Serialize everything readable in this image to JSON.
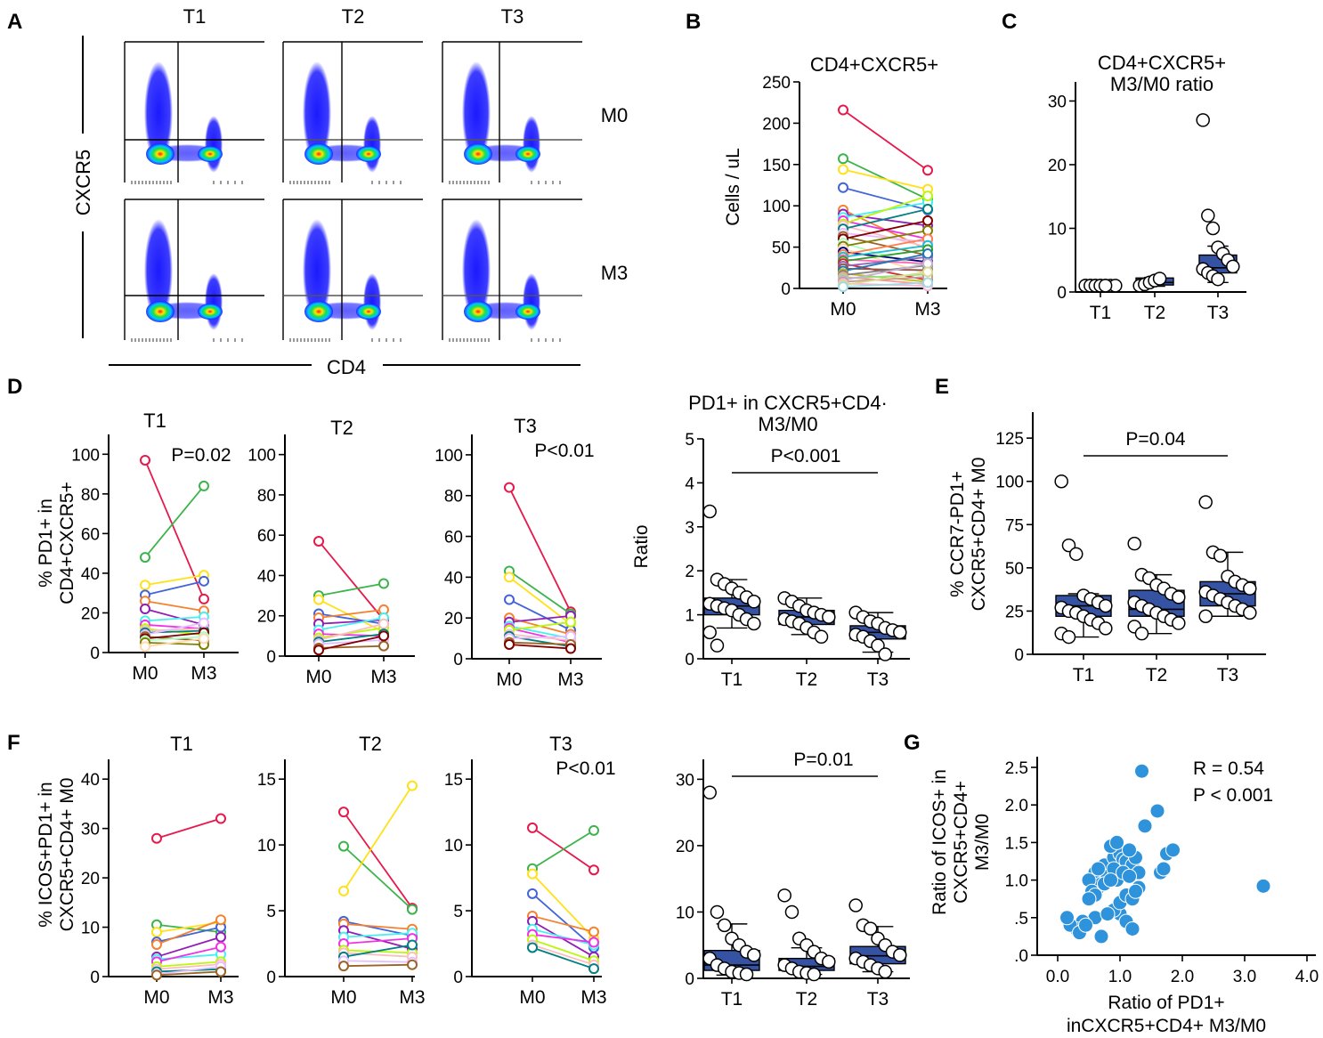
{
  "panel_labels": [
    "A",
    "B",
    "C",
    "D",
    "E",
    "F",
    "G"
  ],
  "chart_data": [
    {
      "id": "A",
      "type": "flow-cytometry",
      "columns": [
        "T1",
        "T2",
        "T3"
      ],
      "rows": [
        "M0",
        "M3"
      ],
      "xlabel": "CD4",
      "ylabel": "CXCR5",
      "colors": [
        "#1a1aff",
        "#00c8ff",
        "#00e040",
        "#ffe000",
        "#ff2000"
      ]
    },
    {
      "id": "B",
      "type": "paired-line",
      "title": "CD4+CXCR5+",
      "categories": [
        "M0",
        "M3"
      ],
      "ylabel": "Cells / uL",
      "ylim": [
        0,
        250
      ],
      "yticks": [
        0,
        50,
        100,
        150,
        200,
        250
      ],
      "pairs": [
        [
          216,
          143
        ],
        [
          157,
          108
        ],
        [
          144,
          120
        ],
        [
          122,
          95
        ],
        [
          95,
          47
        ],
        [
          90,
          76
        ],
        [
          86,
          104
        ],
        [
          82,
          60
        ],
        [
          78,
          112
        ],
        [
          76,
          50
        ],
        [
          72,
          96
        ],
        [
          67,
          56
        ],
        [
          63,
          40
        ],
        [
          60,
          82
        ],
        [
          55,
          25
        ],
        [
          51,
          70
        ],
        [
          48,
          18
        ],
        [
          44,
          32
        ],
        [
          41,
          60
        ],
        [
          38,
          52
        ],
        [
          35,
          30
        ],
        [
          33,
          47
        ],
        [
          30,
          10
        ],
        [
          27,
          38
        ],
        [
          24,
          22
        ],
        [
          21,
          42
        ],
        [
          18,
          8
        ],
        [
          16,
          28
        ],
        [
          14,
          5
        ],
        [
          12,
          17
        ],
        [
          10,
          30
        ],
        [
          8,
          14
        ],
        [
          6,
          3
        ],
        [
          4,
          20
        ],
        [
          2,
          7
        ]
      ]
    },
    {
      "id": "C",
      "type": "box-dot",
      "title": [
        "CD4+CXCR5+",
        "M3/M0 ratio"
      ],
      "categories": [
        "T1",
        "T2",
        "T3"
      ],
      "ylim": [
        0,
        33
      ],
      "yticks": [
        0,
        10,
        20,
        30
      ],
      "boxes": [
        {
          "q1": 1,
          "median": 1,
          "q3": 1,
          "wlo": 1,
          "whi": 1
        },
        {
          "q1": 1.1,
          "median": 1.5,
          "q3": 2.2,
          "wlo": 0.9,
          "whi": 2.3
        },
        {
          "q1": 3,
          "median": 3.8,
          "q3": 5.8,
          "wlo": 1.5,
          "whi": 7.2
        }
      ],
      "points": [
        [
          1,
          1,
          1,
          1,
          1,
          1,
          1,
          1,
          1,
          1,
          1,
          1
        ],
        [
          1,
          1.2,
          1.5,
          1.8,
          2.1
        ],
        [
          27,
          12,
          10,
          7,
          6,
          5,
          4,
          3.6,
          3,
          2.5,
          2
        ]
      ]
    },
    {
      "id": "D1",
      "type": "paired-line",
      "title": "T1",
      "pvalue": "P=0.02",
      "categories": [
        "M0",
        "M3"
      ],
      "ylabel": [
        "% PD1+ in",
        "CD4+CXCR5+"
      ],
      "ylim": [
        0,
        110
      ],
      "yticks": [
        0,
        20,
        40,
        60,
        80,
        100
      ],
      "pairs": [
        [
          97,
          27
        ],
        [
          48,
          84
        ],
        [
          34,
          39
        ],
        [
          29,
          36
        ],
        [
          26,
          21
        ],
        [
          22,
          14
        ],
        [
          16,
          18
        ],
        [
          14,
          12
        ],
        [
          12,
          9
        ],
        [
          11,
          12
        ],
        [
          10,
          11
        ],
        [
          9,
          15
        ],
        [
          8,
          6
        ],
        [
          7,
          10
        ],
        [
          6,
          8
        ],
        [
          5,
          4
        ],
        [
          3,
          7
        ]
      ]
    },
    {
      "id": "D2",
      "type": "paired-line",
      "title": "T2",
      "categories": [
        "M0",
        "M3"
      ],
      "ylim": [
        0,
        110
      ],
      "yticks": [
        0,
        20,
        40,
        60,
        80,
        100
      ],
      "pairs": [
        [
          57,
          18
        ],
        [
          30,
          36
        ],
        [
          28,
          12
        ],
        [
          21,
          16
        ],
        [
          19,
          23
        ],
        [
          16,
          18
        ],
        [
          13,
          19
        ],
        [
          11,
          10
        ],
        [
          9,
          14
        ],
        [
          8,
          16
        ],
        [
          7,
          11
        ],
        [
          6,
          8
        ],
        [
          4,
          5
        ],
        [
          3,
          10
        ]
      ]
    },
    {
      "id": "D3",
      "type": "paired-line",
      "title": "T3",
      "pvalue": "P<0.01",
      "categories": [
        "M0",
        "M3"
      ],
      "ylim": [
        0,
        110
      ],
      "yticks": [
        0,
        20,
        40,
        60,
        80,
        100
      ],
      "pairs": [
        [
          84,
          23
        ],
        [
          43,
          22
        ],
        [
          40,
          17
        ],
        [
          29,
          14
        ],
        [
          20,
          12
        ],
        [
          18,
          21
        ],
        [
          16,
          10
        ],
        [
          15,
          8
        ],
        [
          14,
          18
        ],
        [
          12,
          9
        ],
        [
          11,
          6
        ],
        [
          10,
          11
        ],
        [
          8,
          7
        ],
        [
          7,
          5
        ]
      ]
    },
    {
      "id": "D4",
      "type": "box-dot",
      "title": [
        "PD1+ in CXCR5+CD4·",
        "M3/M0"
      ],
      "pvalue": "P<0.001",
      "categories": [
        "T1",
        "T2",
        "T3"
      ],
      "ylabel": "Ratio",
      "ylim": [
        0,
        5
      ],
      "yticks": [
        0,
        1,
        2,
        3,
        4,
        5
      ],
      "boxes": [
        {
          "q1": 1.0,
          "median": 1.2,
          "q3": 1.38,
          "wlo": 0.7,
          "whi": 1.8
        },
        {
          "q1": 0.78,
          "median": 0.95,
          "q3": 1.1,
          "wlo": 0.55,
          "whi": 1.38
        },
        {
          "q1": 0.45,
          "median": 0.6,
          "q3": 0.75,
          "wlo": 0.15,
          "whi": 1.05
        }
      ],
      "points": [
        [
          3.35,
          1.8,
          1.7,
          1.6,
          1.5,
          1.4,
          1.3,
          1.25,
          1.2,
          1.15,
          1.1,
          1.0,
          0.9,
          0.8,
          0.6,
          0.3
        ],
        [
          1.38,
          1.3,
          1.2,
          1.1,
          1.05,
          1.0,
          0.95,
          0.9,
          0.85,
          0.8,
          0.7,
          0.6,
          0.5
        ],
        [
          1.05,
          0.95,
          0.85,
          0.8,
          0.7,
          0.65,
          0.6,
          0.55,
          0.5,
          0.4,
          0.3,
          0.1
        ]
      ]
    },
    {
      "id": "E",
      "type": "box-dot",
      "pvalue": "P=0.04",
      "categories": [
        "T1",
        "T2",
        "T3"
      ],
      "ylabel": [
        "% CCR7-PD1+",
        "CXCR5+CD4+ M0"
      ],
      "ylim": [
        0,
        140
      ],
      "yticks": [
        0,
        25,
        50,
        75,
        100,
        125
      ],
      "boxes": [
        {
          "q1": 22,
          "median": 28,
          "q3": 34,
          "wlo": 10,
          "whi": 35
        },
        {
          "q1": 22,
          "median": 26,
          "q3": 37,
          "wlo": 12,
          "whi": 46
        },
        {
          "q1": 28,
          "median": 35,
          "q3": 42,
          "wlo": 22,
          "whi": 59
        }
      ],
      "points": [
        [
          100,
          63,
          58,
          34,
          32,
          30,
          28,
          27,
          25,
          24,
          22,
          20,
          18,
          15,
          12,
          10
        ],
        [
          64,
          46,
          44,
          40,
          38,
          35,
          33,
          30,
          28,
          26,
          24,
          22,
          20,
          18,
          16,
          12
        ],
        [
          88,
          59,
          57,
          45,
          42,
          40,
          38,
          36,
          34,
          32,
          30,
          28,
          26,
          24,
          22
        ]
      ]
    },
    {
      "id": "F1",
      "type": "paired-line",
      "title": "T1",
      "categories": [
        "M0",
        "M3"
      ],
      "ylabel": [
        "% ICOS+PD1+ in",
        "CXCR5+CD4+ M0"
      ],
      "ylim": [
        0,
        44
      ],
      "yticks": [
        0,
        10,
        20,
        30,
        40
      ],
      "pairs": [
        [
          28,
          32
        ],
        [
          10.5,
          9
        ],
        [
          9,
          11
        ],
        [
          7,
          10
        ],
        [
          6.5,
          11.5
        ],
        [
          4,
          8
        ],
        [
          3.5,
          4.5
        ],
        [
          3,
          6
        ],
        [
          2,
          3
        ],
        [
          1.5,
          2.5
        ],
        [
          1,
          1.5
        ],
        [
          0.5,
          2
        ],
        [
          0.3,
          1
        ]
      ]
    },
    {
      "id": "F2",
      "type": "paired-line",
      "title": "T2",
      "categories": [
        "M0",
        "M3"
      ],
      "ylim": [
        0,
        16.5
      ],
      "yticks": [
        0,
        5,
        10,
        15
      ],
      "pairs": [
        [
          12.5,
          5.2
        ],
        [
          9.9,
          5.1
        ],
        [
          6.5,
          14.5
        ],
        [
          4.2,
          3.1
        ],
        [
          4,
          3.6
        ],
        [
          3.5,
          2.1
        ],
        [
          3,
          3.3
        ],
        [
          2.5,
          2.9
        ],
        [
          2,
          1.8
        ],
        [
          1.8,
          1.5
        ],
        [
          1.5,
          2.4
        ],
        [
          1.2,
          1.1
        ],
        [
          0.8,
          0.9
        ]
      ]
    },
    {
      "id": "F3",
      "type": "paired-line",
      "title": "T3",
      "pvalue": "P<0.01",
      "categories": [
        "M0",
        "M3"
      ],
      "ylim": [
        0,
        16.5
      ],
      "yticks": [
        0,
        5,
        10,
        15
      ],
      "pairs": [
        [
          11.3,
          8.1
        ],
        [
          8.2,
          11.1
        ],
        [
          7.8,
          2.9
        ],
        [
          6.3,
          2.2
        ],
        [
          4.6,
          3.4
        ],
        [
          4.2,
          1.5
        ],
        [
          3.6,
          2.4
        ],
        [
          3.2,
          2.6
        ],
        [
          2.8,
          1.2
        ],
        [
          2.4,
          0.9
        ],
        [
          2.2,
          0.6
        ]
      ]
    },
    {
      "id": "F4",
      "type": "box-dot",
      "pvalue": "P=0.01",
      "categories": [
        "T1",
        "T2",
        "T3"
      ],
      "ylim": [
        0,
        33
      ],
      "yticks": [
        0,
        10,
        20,
        30
      ],
      "boxes": [
        {
          "q1": 1.2,
          "median": 2,
          "q3": 4.2,
          "wlo": 0.5,
          "whi": 8.2
        },
        {
          "q1": 1.2,
          "median": 1.8,
          "q3": 3,
          "wlo": 0.6,
          "whi": 4.6
        },
        {
          "q1": 2.2,
          "median": 3.4,
          "q3": 4.8,
          "wlo": 1,
          "whi": 7.8
        }
      ],
      "points": [
        [
          28,
          10,
          8,
          6,
          5,
          4,
          3.5,
          3,
          2,
          1.5,
          1,
          0.8,
          0.6
        ],
        [
          12.5,
          10,
          6,
          5,
          4,
          3,
          2.5,
          2,
          1.5,
          1,
          0.8,
          0.6
        ],
        [
          11,
          8,
          7.5,
          6,
          5,
          4,
          3.5,
          3,
          2.5,
          2,
          1.5,
          1
        ]
      ]
    },
    {
      "id": "G",
      "type": "scatter",
      "stat_r": "R = 0.54",
      "stat_p": "P < 0.001",
      "xlabel": [
        "Ratio of PD1+",
        "inCXCR5+CD4+ M3/M0"
      ],
      "ylabel": [
        "Ratio of ICOS+ in",
        "CXCR5+CD4+",
        "M3/M0"
      ],
      "xlim": [
        0,
        4.1
      ],
      "ylim": [
        0,
        2.6
      ],
      "xticks": [
        0.0,
        1.0,
        2.0,
        3.0,
        4.0
      ],
      "xticklabels": [
        "0.0",
        "1.0",
        "2.0",
        "3.0",
        "4.0"
      ],
      "yticks": [
        0,
        0.5,
        1.0,
        1.5,
        2.0,
        2.5
      ],
      "yticklabels": [
        ".0",
        ".5",
        "1.0",
        "1.5",
        "2.0",
        "2.5"
      ],
      "x": [
        1.35,
        1.6,
        1.75,
        1.4,
        1.85,
        0.6,
        0.75,
        0.9,
        1.0,
        1.05,
        1.1,
        1.2,
        1.25,
        0.85,
        0.95,
        1.15,
        0.65,
        0.7,
        0.8,
        0.5,
        0.55,
        1.3,
        1.0,
        0.9,
        1.1,
        1.2,
        0.6,
        0.4,
        0.3,
        0.2,
        0.15,
        0.35,
        0.45,
        0.7,
        0.8,
        1.0,
        1.1,
        1.2,
        1.3,
        1.65,
        1.7,
        0.95,
        3.3,
        1.25,
        0.9,
        1.05,
        1.15,
        0.75,
        0.85,
        0.65,
        0.6,
        0.5
      ],
      "y": [
        2.45,
        1.92,
        1.35,
        1.72,
        1.4,
        1.1,
        1.2,
        1.3,
        1.35,
        1.28,
        1.25,
        1.2,
        1.3,
        1.45,
        1.5,
        1.4,
        0.9,
        0.95,
        1.05,
        1.0,
        0.85,
        1.1,
        0.55,
        0.6,
        0.45,
        0.35,
        0.5,
        0.45,
        0.35,
        0.4,
        0.5,
        0.3,
        0.4,
        0.25,
        0.55,
        0.7,
        0.8,
        0.75,
        0.9,
        1.1,
        1.15,
        1.0,
        0.92,
        0.85,
        1.15,
        1.1,
        1.05,
        0.95,
        1.0,
        1.15,
        0.8,
        0.75
      ]
    }
  ]
}
